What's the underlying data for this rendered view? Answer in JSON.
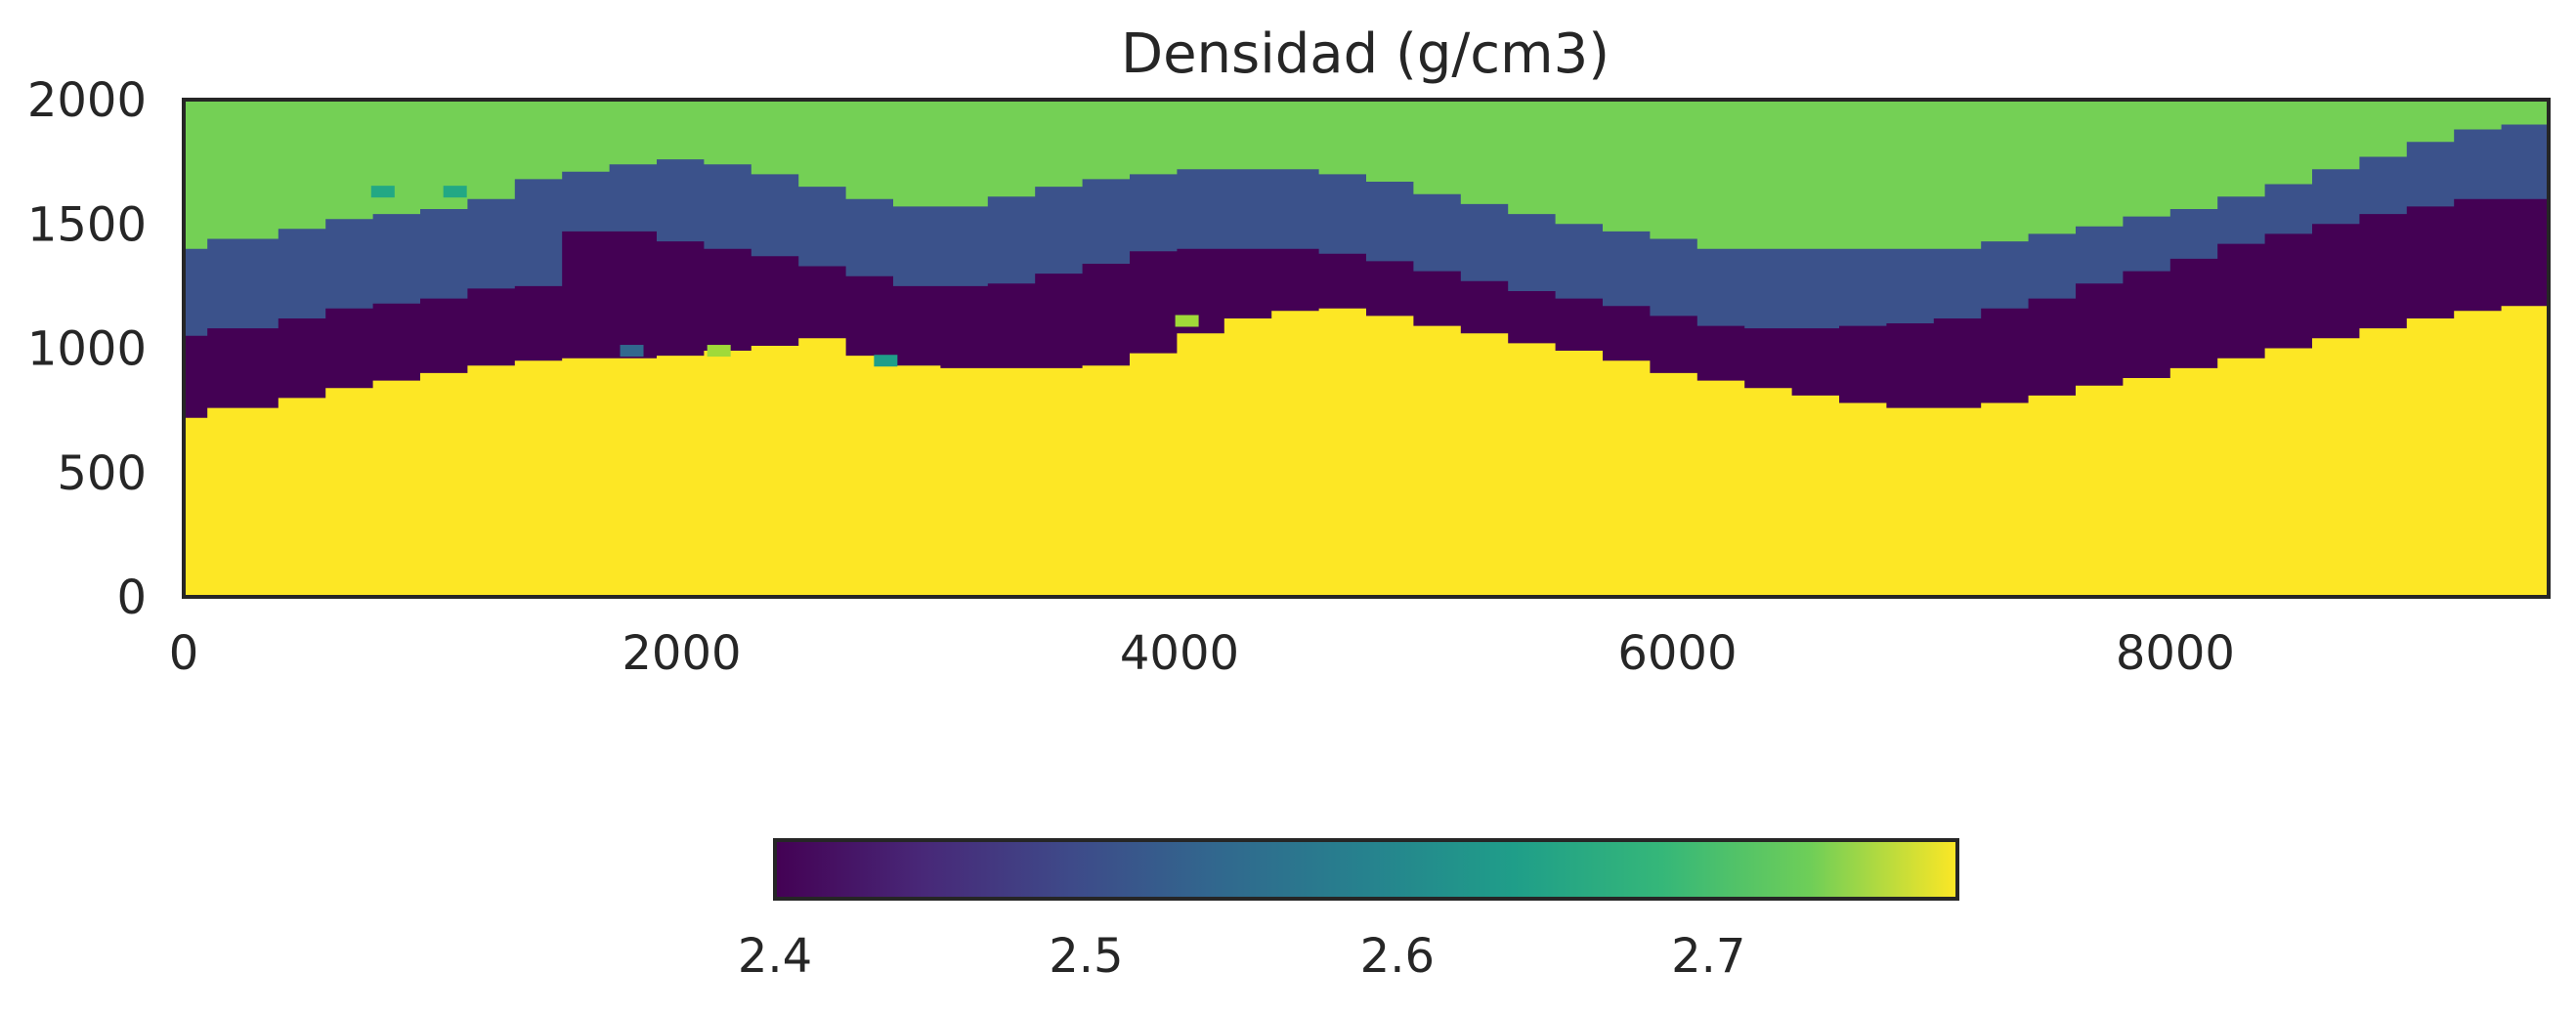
{
  "chart_data": {
    "type": "heatmap",
    "title": "Densidad (g/cm3)",
    "xlabel": "",
    "ylabel": "",
    "xlim": [
      0,
      9500
    ],
    "ylim": [
      0,
      2000
    ],
    "x_ticks": [
      0,
      2000,
      4000,
      6000,
      8000
    ],
    "x_tick_labels": [
      "0",
      "2000",
      "4000",
      "6000",
      "8000"
    ],
    "y_ticks": [
      0,
      500,
      1000,
      1500,
      2000
    ],
    "y_tick_labels": [
      "0",
      "500",
      "1000",
      "1500",
      "2000"
    ],
    "grid": false,
    "colormap": "viridis",
    "colorbar": {
      "orientation": "horizontal",
      "placement": "bottom",
      "range": [
        2.4,
        2.78
      ],
      "ticks": [
        2.4,
        2.5,
        2.6,
        2.7
      ],
      "tick_labels": [
        "2.4",
        "2.5",
        "2.6",
        "2.7"
      ]
    },
    "layers_top_to_bottom": [
      {
        "density": 2.68,
        "color": "#74d055"
      },
      {
        "density": 2.48,
        "color": "#3b528b"
      },
      {
        "density": 2.4,
        "color": "#440154"
      },
      {
        "density": 2.78,
        "color": "#fde725"
      }
    ],
    "boundary_x": [
      0,
      95,
      380,
      570,
      760,
      950,
      1140,
      1330,
      1520,
      1710,
      1900,
      2090,
      2280,
      2470,
      2660,
      2850,
      3040,
      3230,
      3420,
      3610,
      3800,
      3990,
      4180,
      4370,
      4560,
      4750,
      4940,
      5130,
      5320,
      5510,
      5700,
      5890,
      6080,
      6270,
      6460,
      6650,
      6840,
      7030,
      7220,
      7410,
      7600,
      7790,
      7980,
      8170,
      8360,
      8550,
      8740,
      8930,
      9120,
      9310,
      9500
    ],
    "green_blue_boundary": [
      1400,
      1440,
      1480,
      1520,
      1540,
      1560,
      1600,
      1680,
      1710,
      1740,
      1760,
      1740,
      1700,
      1650,
      1600,
      1570,
      1570,
      1610,
      1650,
      1680,
      1700,
      1720,
      1720,
      1720,
      1700,
      1670,
      1620,
      1580,
      1540,
      1500,
      1470,
      1440,
      1400,
      1400,
      1400,
      1400,
      1400,
      1400,
      1430,
      1460,
      1490,
      1530,
      1560,
      1610,
      1660,
      1720,
      1770,
      1830,
      1880,
      1900,
      1900
    ],
    "blue_purple_boundary": [
      1050,
      1080,
      1120,
      1160,
      1180,
      1200,
      1240,
      1250,
      1470,
      1470,
      1430,
      1400,
      1370,
      1330,
      1290,
      1250,
      1250,
      1260,
      1300,
      1340,
      1390,
      1400,
      1400,
      1400,
      1380,
      1350,
      1310,
      1270,
      1230,
      1200,
      1170,
      1130,
      1090,
      1080,
      1080,
      1090,
      1100,
      1120,
      1160,
      1200,
      1260,
      1310,
      1360,
      1420,
      1460,
      1500,
      1540,
      1570,
      1600,
      1600,
      1600
    ],
    "purple_yellow_boundary": [
      720,
      760,
      800,
      840,
      870,
      900,
      930,
      950,
      960,
      960,
      970,
      990,
      1010,
      1040,
      970,
      930,
      920,
      920,
      920,
      930,
      980,
      1060,
      1120,
      1150,
      1160,
      1130,
      1090,
      1060,
      1020,
      990,
      950,
      900,
      870,
      840,
      810,
      780,
      760,
      760,
      780,
      810,
      850,
      880,
      920,
      960,
      1000,
      1040,
      1080,
      1120,
      1150,
      1170,
      1170
    ],
    "anomalies": [
      {
        "x": 800,
        "y": 1630,
        "density": 2.62,
        "color": "#22a884"
      },
      {
        "x": 1090,
        "y": 1630,
        "density": 2.62,
        "color": "#22a884"
      },
      {
        "x": 1800,
        "y": 990,
        "density": 2.52,
        "color": "#31688e"
      },
      {
        "x": 2150,
        "y": 990,
        "density": 2.72,
        "color": "#a0da39"
      },
      {
        "x": 2820,
        "y": 950,
        "density": 2.62,
        "color": "#1f9e89"
      },
      {
        "x": 4030,
        "y": 1110,
        "density": 2.7,
        "color": "#a0da39"
      }
    ]
  }
}
